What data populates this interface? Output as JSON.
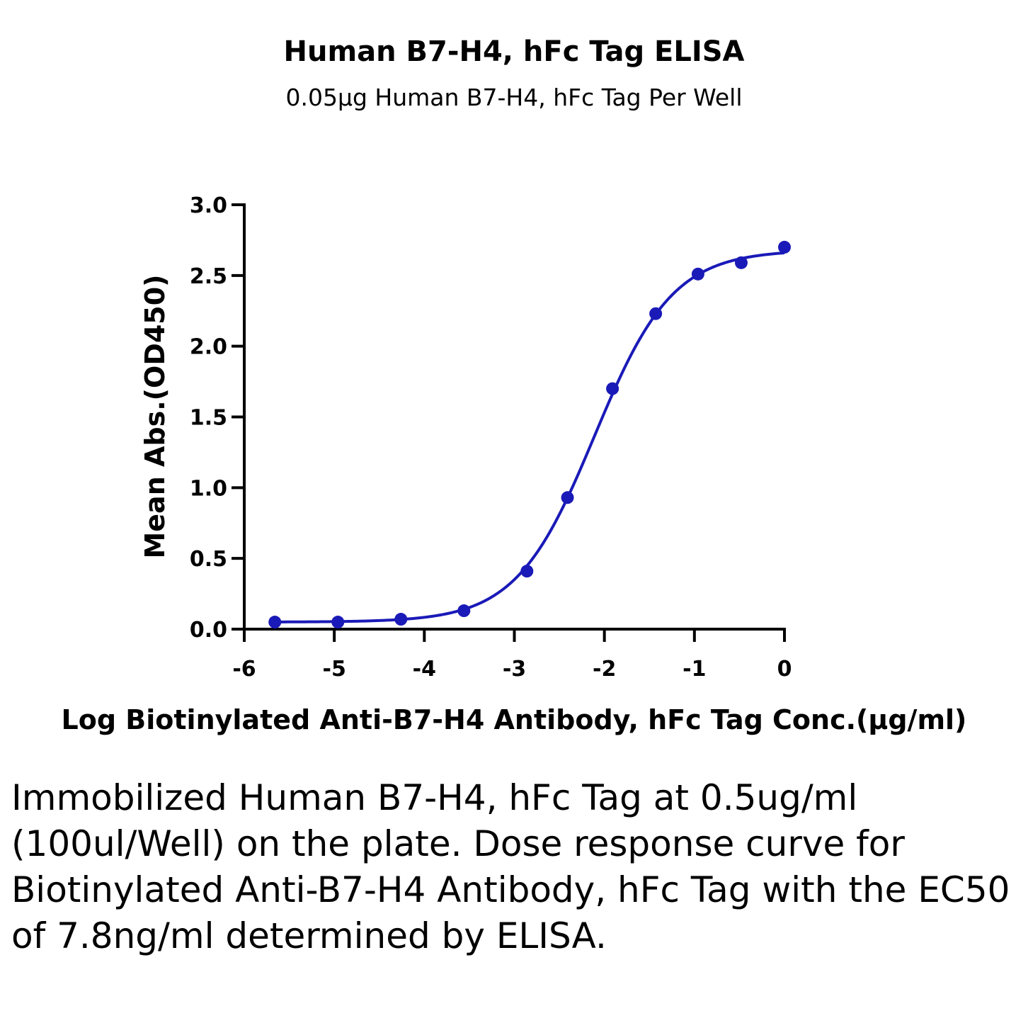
{
  "chart_data": {
    "type": "scatter",
    "title": "Human B7-H4, hFc Tag ELISA",
    "subtitle": "0.05μg Human B7-H4, hFc Tag Per Well",
    "xlabel": "Log Biotinylated Anti-B7-H4 Antibody, hFc Tag Conc.(μg/ml)",
    "ylabel": "Mean Abs.(OD450)",
    "xlim": [
      -6,
      0
    ],
    "ylim": [
      0,
      3.0
    ],
    "x_ticks": [
      "-6",
      "-5",
      "-4",
      "-3",
      "-2",
      "-1",
      "0"
    ],
    "y_ticks": [
      "0.0",
      "0.5",
      "1.0",
      "1.5",
      "2.0",
      "2.5",
      "3.0"
    ],
    "grid": false,
    "color": "#1a1ab8",
    "series": [
      {
        "x": [
          -5.66,
          -4.96,
          -4.26,
          -3.56,
          -2.86,
          -2.41,
          -1.91,
          -1.43,
          -0.96,
          -0.48,
          0.0
        ],
        "y": [
          0.05,
          0.05,
          0.07,
          0.13,
          0.41,
          0.93,
          1.7,
          2.23,
          2.51,
          2.59,
          2.7
        ]
      }
    ],
    "fit": {
      "model": "4PL",
      "bottom": 0.05,
      "top": 2.68,
      "log_ec50": -2.11,
      "hill_slope": 1.0
    }
  },
  "caption": "Immobilized Human B7-H4, hFc Tag at 0.5ug/ml (100ul/Well) on the plate. Dose response curve for Biotinylated Anti-B7-H4 Antibody, hFc Tag with the EC50 of 7.8ng/ml determined by ELISA."
}
